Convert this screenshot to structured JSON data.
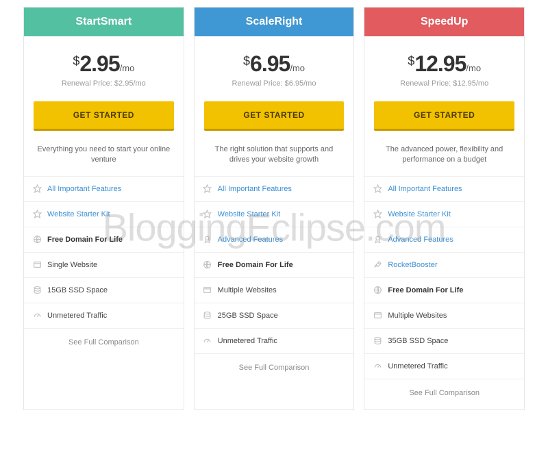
{
  "watermark": "BloggingEclipse.com",
  "colors": {
    "header_startsmart": "#54c0a2",
    "header_scaleright": "#3f97d3",
    "header_speedup": "#e15b5f",
    "cta_bg": "#f2c100",
    "cta_border": "#c79a00",
    "link_text": "#3b8fd4"
  },
  "plans": [
    {
      "key": "startsmart",
      "name": "StartSmart",
      "header_color": "#54c0a2",
      "currency": "$",
      "price": "2.95",
      "per": "/mo",
      "renewal": "Renewal Price: $2.95/mo",
      "cta": "GET STARTED",
      "tagline": "Everything you need to start your online venture",
      "features": [
        {
          "icon": "star",
          "label": "All Important Features",
          "link": true
        },
        {
          "icon": "star",
          "label": "Website Starter Kit",
          "link": true
        },
        {
          "icon": "globe",
          "label": "Free Domain For Life",
          "bold": true
        },
        {
          "icon": "window",
          "label": "Single Website"
        },
        {
          "icon": "disk",
          "label": "15GB SSD Space"
        },
        {
          "icon": "gauge",
          "label": "Unmetered Traffic"
        }
      ],
      "compare": "See Full Comparison"
    },
    {
      "key": "scaleright",
      "name": "ScaleRight",
      "header_color": "#3f97d3",
      "currency": "$",
      "price": "6.95",
      "per": "/mo",
      "renewal": "Renewal Price: $6.95/mo",
      "cta": "GET STARTED",
      "tagline": "The right solution that supports and drives your website growth",
      "features": [
        {
          "icon": "star",
          "label": "All Important Features",
          "link": true
        },
        {
          "icon": "star",
          "label": "Website Starter Kit",
          "link": true
        },
        {
          "icon": "ribbon",
          "label": "Advanced Features",
          "link": true
        },
        {
          "icon": "globe",
          "label": "Free Domain For Life",
          "bold": true
        },
        {
          "icon": "window",
          "label": "Multiple Websites"
        },
        {
          "icon": "disk",
          "label": "25GB SSD Space"
        },
        {
          "icon": "gauge",
          "label": "Unmetered Traffic"
        }
      ],
      "compare": "See Full Comparison"
    },
    {
      "key": "speedup",
      "name": "SpeedUp",
      "header_color": "#e15b5f",
      "currency": "$",
      "price": "12.95",
      "per": "/mo",
      "renewal": "Renewal Price: $12.95/mo",
      "cta": "GET STARTED",
      "tagline": "The advanced power, flexibility and performance on a budget",
      "features": [
        {
          "icon": "star",
          "label": "All Important Features",
          "link": true
        },
        {
          "icon": "star",
          "label": "Website Starter Kit",
          "link": true
        },
        {
          "icon": "ribbon",
          "label": "Advanced Features",
          "link": true
        },
        {
          "icon": "rocket",
          "label": "RocketBooster",
          "link": true
        },
        {
          "icon": "globe",
          "label": "Free Domain For Life",
          "bold": true
        },
        {
          "icon": "window",
          "label": "Multiple Websites"
        },
        {
          "icon": "disk",
          "label": "35GB SSD Space"
        },
        {
          "icon": "gauge",
          "label": "Unmetered Traffic"
        }
      ],
      "compare": "See Full Comparison"
    }
  ]
}
